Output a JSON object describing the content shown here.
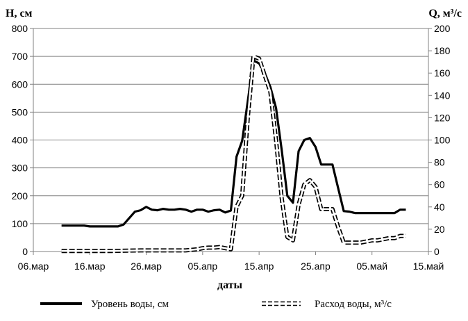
{
  "chart_data": {
    "type": "line",
    "x_axis_label": "даты",
    "y_left_label": "Н, см",
    "y_right_label": "Q, м³/с",
    "x_ticks": [
      {
        "label": "06.мар",
        "date": "2000-03-06"
      },
      {
        "label": "16.мар",
        "date": "2000-03-16"
      },
      {
        "label": "26.мар",
        "date": "2000-03-26"
      },
      {
        "label": "05.апр",
        "date": "2000-04-05"
      },
      {
        "label": "15.апр",
        "date": "2000-04-15"
      },
      {
        "label": "25.апр",
        "date": "2000-04-25"
      },
      {
        "label": "05.май",
        "date": "2000-05-05"
      },
      {
        "label": "15.май",
        "date": "2000-05-15"
      }
    ],
    "y_left": {
      "min": 0,
      "max": 800,
      "ticks": [
        "0",
        "100",
        "200",
        "300",
        "400",
        "500",
        "600",
        "700",
        "800"
      ]
    },
    "y_right": {
      "min": 0,
      "max": 200,
      "ticks": [
        "0",
        "20",
        "40",
        "60",
        "80",
        "100",
        "120",
        "140",
        "160",
        "180",
        "200"
      ]
    },
    "grid": "horizontal",
    "legend_position": "bottom",
    "series": [
      {
        "name": "Уровень воды, см",
        "axis": "left",
        "style": "solid",
        "color": "#000000",
        "points": [
          [
            "2000-03-11",
            93
          ],
          [
            "2000-03-12",
            93
          ],
          [
            "2000-03-13",
            93
          ],
          [
            "2000-03-14",
            93
          ],
          [
            "2000-03-15",
            93
          ],
          [
            "2000-03-16",
            90
          ],
          [
            "2000-03-17",
            90
          ],
          [
            "2000-03-18",
            90
          ],
          [
            "2000-03-19",
            90
          ],
          [
            "2000-03-20",
            90
          ],
          [
            "2000-03-21",
            90
          ],
          [
            "2000-03-22",
            97
          ],
          [
            "2000-03-23",
            120
          ],
          [
            "2000-03-24",
            143
          ],
          [
            "2000-03-25",
            148
          ],
          [
            "2000-03-26",
            160
          ],
          [
            "2000-03-27",
            150
          ],
          [
            "2000-03-28",
            148
          ],
          [
            "2000-03-29",
            153
          ],
          [
            "2000-03-30",
            150
          ],
          [
            "2000-03-31",
            150
          ],
          [
            "2000-04-01",
            153
          ],
          [
            "2000-04-02",
            150
          ],
          [
            "2000-04-03",
            143
          ],
          [
            "2000-04-04",
            150
          ],
          [
            "2000-04-05",
            150
          ],
          [
            "2000-04-06",
            143
          ],
          [
            "2000-04-07",
            148
          ],
          [
            "2000-04-08",
            150
          ],
          [
            "2000-04-09",
            140
          ],
          [
            "2000-04-10",
            147
          ],
          [
            "2000-04-11",
            340
          ],
          [
            "2000-04-12",
            397
          ],
          [
            "2000-04-13",
            540
          ],
          [
            "2000-04-14",
            685
          ],
          [
            "2000-04-15",
            675
          ],
          [
            "2000-04-16",
            640
          ],
          [
            "2000-04-17",
            590
          ],
          [
            "2000-04-18",
            515
          ],
          [
            "2000-04-19",
            365
          ],
          [
            "2000-04-20",
            200
          ],
          [
            "2000-04-21",
            175
          ],
          [
            "2000-04-22",
            360
          ],
          [
            "2000-04-23",
            400
          ],
          [
            "2000-04-24",
            407
          ],
          [
            "2000-04-25",
            375
          ],
          [
            "2000-04-26",
            312
          ],
          [
            "2000-04-27",
            312
          ],
          [
            "2000-04-28",
            312
          ],
          [
            "2000-04-29",
            228
          ],
          [
            "2000-04-30",
            145
          ],
          [
            "2000-05-01",
            143
          ],
          [
            "2000-05-02",
            138
          ],
          [
            "2000-05-03",
            138
          ],
          [
            "2000-05-04",
            138
          ],
          [
            "2000-05-05",
            138
          ],
          [
            "2000-05-06",
            138
          ],
          [
            "2000-05-07",
            138
          ],
          [
            "2000-05-08",
            138
          ],
          [
            "2000-05-09",
            138
          ],
          [
            "2000-05-10",
            150
          ],
          [
            "2000-05-11",
            150
          ]
        ]
      },
      {
        "name": "Расход воды, м³/с",
        "axis": "right",
        "style": "double-dashed",
        "color": "#000000",
        "points": [
          [
            "2000-03-11",
            0.5
          ],
          [
            "2000-03-15",
            0.5
          ],
          [
            "2000-03-20",
            0.5
          ],
          [
            "2000-03-25",
            1
          ],
          [
            "2000-03-30",
            1
          ],
          [
            "2000-04-02",
            1
          ],
          [
            "2000-04-04",
            2
          ],
          [
            "2000-04-05",
            3
          ],
          [
            "2000-04-06",
            3.5
          ],
          [
            "2000-04-07",
            3.5
          ],
          [
            "2000-04-08",
            4
          ],
          [
            "2000-04-09",
            3
          ],
          [
            "2000-04-10",
            2
          ],
          [
            "2000-04-11",
            40
          ],
          [
            "2000-04-12",
            50
          ],
          [
            "2000-04-13",
            120
          ],
          [
            "2000-04-14",
            175
          ],
          [
            "2000-04-15",
            173
          ],
          [
            "2000-04-16",
            158
          ],
          [
            "2000-04-17",
            143
          ],
          [
            "2000-04-18",
            100
          ],
          [
            "2000-04-19",
            48
          ],
          [
            "2000-04-20",
            13
          ],
          [
            "2000-04-21",
            10
          ],
          [
            "2000-04-22",
            42
          ],
          [
            "2000-04-23",
            60
          ],
          [
            "2000-04-24",
            64
          ],
          [
            "2000-04-25",
            58
          ],
          [
            "2000-04-26",
            38
          ],
          [
            "2000-04-27",
            38
          ],
          [
            "2000-04-28",
            38
          ],
          [
            "2000-04-29",
            22
          ],
          [
            "2000-04-30",
            8
          ],
          [
            "2000-05-01",
            8
          ],
          [
            "2000-05-02",
            8
          ],
          [
            "2000-05-03",
            8
          ],
          [
            "2000-05-04",
            9
          ],
          [
            "2000-05-05",
            10
          ],
          [
            "2000-05-06",
            10
          ],
          [
            "2000-05-07",
            11
          ],
          [
            "2000-05-08",
            12
          ],
          [
            "2000-05-09",
            12
          ],
          [
            "2000-05-10",
            14
          ],
          [
            "2000-05-11",
            14
          ]
        ]
      }
    ]
  }
}
